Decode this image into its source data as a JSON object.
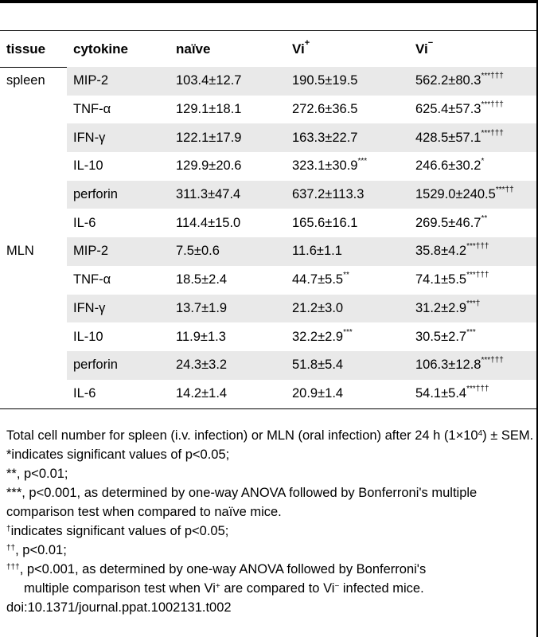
{
  "table": {
    "headers": [
      {
        "text": "tissue",
        "sup": ""
      },
      {
        "text": "cytokine",
        "sup": ""
      },
      {
        "text": "naïve",
        "sup": ""
      },
      {
        "text": "Vi",
        "sup": "+"
      },
      {
        "text": "Vi",
        "sup": "−"
      }
    ],
    "rows": [
      {
        "tissue": "spleen",
        "cytokine": "MIP-2",
        "naive": "103.4±12.7",
        "naive_sup": "",
        "vip": "190.5±19.5",
        "vip_sup": "",
        "vim": "562.2±80.3",
        "vim_sup": "***†††"
      },
      {
        "tissue": "",
        "cytokine": "TNF-α",
        "naive": "129.1±18.1",
        "naive_sup": "",
        "vip": "272.6±36.5",
        "vip_sup": "",
        "vim": "625.4±57.3",
        "vim_sup": "***†††"
      },
      {
        "tissue": "",
        "cytokine": "IFN-γ",
        "naive": "122.1±17.9",
        "naive_sup": "",
        "vip": "163.3±22.7",
        "vip_sup": "",
        "vim": "428.5±57.1",
        "vim_sup": "***†††"
      },
      {
        "tissue": "",
        "cytokine": "IL-10",
        "naive": "129.9±20.6",
        "naive_sup": "",
        "vip": "323.1±30.9",
        "vip_sup": "***",
        "vim": "246.6±30.2",
        "vim_sup": "*"
      },
      {
        "tissue": "",
        "cytokine": "perforin",
        "naive": "311.3±47.4",
        "naive_sup": "",
        "vip": "637.2±113.3",
        "vip_sup": "",
        "vim": "1529.0±240.5",
        "vim_sup": "***††"
      },
      {
        "tissue": "",
        "cytokine": "IL-6",
        "naive": "114.4±15.0",
        "naive_sup": "",
        "vip": "165.6±16.1",
        "vip_sup": "",
        "vim": "269.5±46.7",
        "vim_sup": "**"
      },
      {
        "tissue": "MLN",
        "cytokine": "MIP-2",
        "naive": "7.5±0.6",
        "naive_sup": "",
        "vip": "11.6±1.1",
        "vip_sup": "",
        "vim": "35.8±4.2",
        "vim_sup": "***†††"
      },
      {
        "tissue": "",
        "cytokine": "TNF-α",
        "naive": "18.5±2.4",
        "naive_sup": "",
        "vip": "44.7±5.5",
        "vip_sup": "**",
        "vim": "74.1±5.5",
        "vim_sup": "***†††"
      },
      {
        "tissue": "",
        "cytokine": "IFN-γ",
        "naive": "13.7±1.9",
        "naive_sup": "",
        "vip": "21.2±3.0",
        "vip_sup": "",
        "vim": "31.2±2.9",
        "vim_sup": "***†"
      },
      {
        "tissue": "",
        "cytokine": "IL-10",
        "naive": "11.9±1.3",
        "naive_sup": "",
        "vip": "32.2±2.9",
        "vip_sup": "***",
        "vim": "30.5±2.7",
        "vim_sup": "***"
      },
      {
        "tissue": "",
        "cytokine": "perforin",
        "naive": "24.3±3.2",
        "naive_sup": "",
        "vip": "51.8±5.4",
        "vip_sup": "",
        "vim": "106.3±12.8",
        "vim_sup": "***†††"
      },
      {
        "tissue": "",
        "cytokine": "IL-6",
        "naive": "14.2±1.4",
        "naive_sup": "",
        "vip": "20.9±1.4",
        "vip_sup": "",
        "vim": "54.1±5.4",
        "vim_sup": "***†††"
      }
    ]
  },
  "notes": {
    "total_a": "Total cell number for spleen (i.v. infection) or MLN (oral infection) after 24 h (1×10",
    "total_sup": "4",
    "total_b": ") ± SEM.",
    "star1": "*indicates significant values of p<0.05;",
    "star2": "**, p<0.01;",
    "star3": "***, p<0.001, as determined by one-way ANOVA followed by Bonferroni's multiple comparison test when compared to naïve mice.",
    "dag1_sup": "†",
    "dag1": "indicates significant values of p<0.05;",
    "dag2_sup": "††",
    "dag2": ", p<0.01;",
    "dag3_sup": "†††",
    "dag3_a": ", p<0.001, as determined by one-way ANOVA followed by Bonferroni's",
    "dag3_b1": "multiple comparison test when Vi",
    "dag3_b_sup1": "+",
    "dag3_b2": " are compared to Vi",
    "dag3_b_sup2": "−",
    "dag3_b3": " infected mice.",
    "doi": "doi:10.1371/journal.ppat.1002131.t002"
  }
}
